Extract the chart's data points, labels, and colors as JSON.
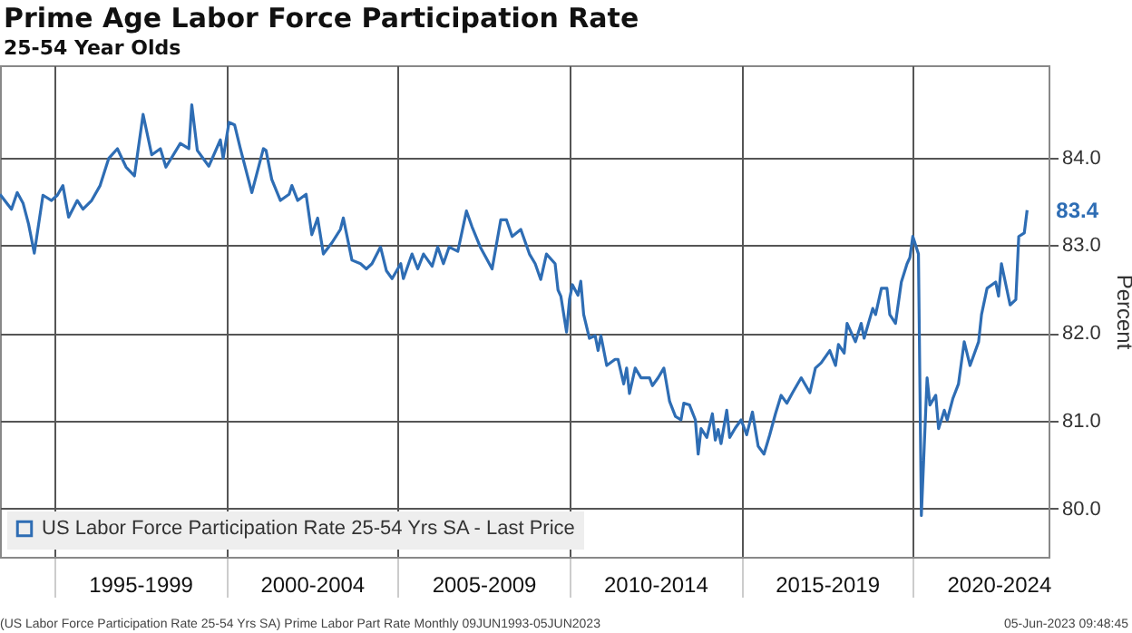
{
  "chart_data": {
    "type": "line",
    "title": "Prime Age Labor Force Participation Rate",
    "subtitle": "25-54 Year Olds",
    "ylabel": "Percent",
    "x": [
      "1993-06",
      "1993-10",
      "1993-12",
      "1994-02",
      "1994-04",
      "1994-06",
      "1994-09",
      "1994-12",
      "1995-02",
      "1995-04",
      "1995-06",
      "1995-09",
      "1995-11",
      "1996-02",
      "1996-05",
      "1996-08",
      "1996-11",
      "1997-02",
      "1997-05",
      "1997-08",
      "1997-11",
      "1998-02",
      "1998-04",
      "1998-09",
      "1998-12",
      "1999-01",
      "1999-03",
      "1999-07",
      "1999-11",
      "1999-12",
      "2000-02",
      "2000-04",
      "2000-06",
      "2000-10",
      "2001-02",
      "2001-03",
      "2001-05",
      "2001-08",
      "2001-11",
      "2001-12",
      "2002-02",
      "2002-05",
      "2002-07",
      "2002-09",
      "2002-11",
      "2003-02",
      "2003-05",
      "2003-06",
      "2003-09",
      "2003-12",
      "2004-02",
      "2004-04",
      "2004-07",
      "2004-09",
      "2004-11",
      "2005-02",
      "2005-03",
      "2005-06",
      "2005-08",
      "2005-10",
      "2006-01",
      "2006-03",
      "2006-05",
      "2006-07",
      "2006-10",
      "2007-01",
      "2007-03",
      "2007-06",
      "2007-10",
      "2008-01",
      "2008-03",
      "2008-05",
      "2008-08",
      "2008-11",
      "2009-01",
      "2009-03",
      "2009-05",
      "2009-08",
      "2009-09",
      "2009-10",
      "2009-12",
      "2010-01",
      "2010-02",
      "2010-04",
      "2010-05",
      "2010-06",
      "2010-08",
      "2010-10",
      "2010-11",
      "2010-12",
      "2011-02",
      "2011-05",
      "2011-06",
      "2011-08",
      "2011-09",
      "2011-10",
      "2011-12",
      "2012-02",
      "2012-05",
      "2012-06",
      "2012-08",
      "2012-10",
      "2012-12",
      "2013-02",
      "2013-04",
      "2013-05",
      "2013-07",
      "2013-09",
      "2013-10",
      "2013-11",
      "2014-01",
      "2014-03",
      "2014-04",
      "2014-05",
      "2014-06",
      "2014-08",
      "2014-09",
      "2014-11",
      "2015-01",
      "2015-03",
      "2015-05",
      "2015-07",
      "2015-09",
      "2015-11",
      "2016-01",
      "2016-03",
      "2016-05",
      "2016-07",
      "2016-10",
      "2017-01",
      "2017-03",
      "2017-05",
      "2017-08",
      "2017-10",
      "2017-11",
      "2018-01",
      "2018-02",
      "2018-05",
      "2018-07",
      "2018-08",
      "2018-11",
      "2018-12",
      "2019-02",
      "2019-04",
      "2019-05",
      "2019-07",
      "2019-09",
      "2019-11",
      "2019-12",
      "2020-01",
      "2020-03",
      "2020-04",
      "2020-06",
      "2020-07",
      "2020-09",
      "2020-10",
      "2020-12",
      "2021-01",
      "2021-03",
      "2021-05",
      "2021-07",
      "2021-09",
      "2021-12",
      "2022-01",
      "2022-03",
      "2022-06",
      "2022-07",
      "2022-08",
      "2022-11",
      "2023-01",
      "2023-02",
      "2023-04",
      "2023-05"
    ],
    "series": [
      {
        "name": "US Labor Force Participation Rate 25-54 Yrs SA - Last Price",
        "color": "#2e6db4",
        "values": [
          83.58,
          83.41,
          83.6,
          83.48,
          83.24,
          82.91,
          83.57,
          83.51,
          83.57,
          83.68,
          83.32,
          83.51,
          83.41,
          83.51,
          83.68,
          83.99,
          84.1,
          83.89,
          83.79,
          84.49,
          84.03,
          84.1,
          83.89,
          84.16,
          84.1,
          84.6,
          84.08,
          83.9,
          84.2,
          83.99,
          84.4,
          84.37,
          84.1,
          83.6,
          84.1,
          84.08,
          83.75,
          83.51,
          83.58,
          83.68,
          83.51,
          83.58,
          83.12,
          83.31,
          82.9,
          83.03,
          83.18,
          83.31,
          82.83,
          82.79,
          82.73,
          82.79,
          82.98,
          82.71,
          82.62,
          82.79,
          82.62,
          82.9,
          82.73,
          82.9,
          82.76,
          82.98,
          82.79,
          82.98,
          82.93,
          83.39,
          83.21,
          82.97,
          82.73,
          83.29,
          83.29,
          83.1,
          83.18,
          82.9,
          82.79,
          82.61,
          82.9,
          82.79,
          82.49,
          82.42,
          82.01,
          82.38,
          82.55,
          82.43,
          82.59,
          82.21,
          81.94,
          81.97,
          81.8,
          81.97,
          81.63,
          81.7,
          81.7,
          81.42,
          81.6,
          81.31,
          81.6,
          81.49,
          81.49,
          81.4,
          81.49,
          81.6,
          81.22,
          81.05,
          81.01,
          81.2,
          81.18,
          81.01,
          80.62,
          80.91,
          80.81,
          81.08,
          80.78,
          80.9,
          80.74,
          81.12,
          80.81,
          80.92,
          81.01,
          80.84,
          81.1,
          80.71,
          80.62,
          80.84,
          81.08,
          81.29,
          81.2,
          81.32,
          81.49,
          81.32,
          81.6,
          81.66,
          81.8,
          81.63,
          81.87,
          81.77,
          82.11,
          81.9,
          82.11,
          81.94,
          82.28,
          82.21,
          82.51,
          82.51,
          82.21,
          82.11,
          82.58,
          82.79,
          82.86,
          83.1,
          82.9,
          79.92,
          81.49,
          81.18,
          81.29,
          80.91,
          81.12,
          81.01,
          81.25,
          81.42,
          81.9,
          81.63,
          81.9,
          82.21,
          82.51,
          82.58,
          82.42,
          82.79,
          82.32,
          82.38,
          83.1,
          83.14,
          83.4
        ]
      }
    ],
    "xlim": [
      "1993-06-01",
      "2023-12-15"
    ],
    "xticks": [
      {
        "value": "1995-01",
        "label": null
      },
      {
        "value": "1997-07",
        "label": "1995-1999"
      },
      {
        "value": "2000-01",
        "label": null
      },
      {
        "value": "2002-07",
        "label": "2000-2004"
      },
      {
        "value": "2005-01",
        "label": null
      },
      {
        "value": "2007-07",
        "label": "2005-2009"
      },
      {
        "value": "2010-01",
        "label": null
      },
      {
        "value": "2012-07",
        "label": "2010-2014"
      },
      {
        "value": "2015-01",
        "label": null
      },
      {
        "value": "2017-07",
        "label": "2015-2019"
      },
      {
        "value": "2020-01",
        "label": null
      },
      {
        "value": "2022-07",
        "label": "2020-2024"
      }
    ],
    "ylim": [
      79.45,
      85.05
    ],
    "yticks": [
      {
        "value": 80,
        "label": "80.0"
      },
      {
        "value": 81,
        "label": "81.0"
      },
      {
        "value": 82,
        "label": "82.0"
      },
      {
        "value": 83,
        "label": "83.0"
      },
      {
        "value": 84,
        "label": "84.0"
      }
    ],
    "grid": true,
    "legend": "bottom left",
    "marker": "none",
    "line_style": "solid",
    "annotations": [
      {
        "text": "83.4",
        "x": "2023-05",
        "y": 83.4
      },
      "(US Labor Force Participation Rate 25-54 Yrs SA) Prime Labor Part Rate  Monthly 09JUN1993-05JUN2023",
      "05-Jun-2023 09:48:45"
    ]
  }
}
